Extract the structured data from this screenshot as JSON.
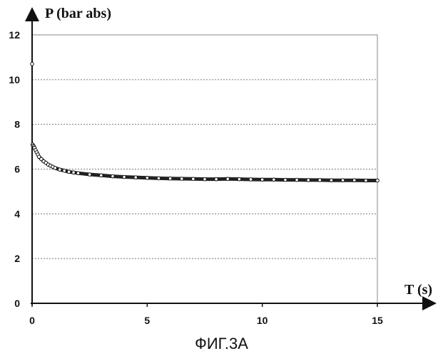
{
  "chart_data": {
    "type": "scatter",
    "xlabel": "T (s)",
    "ylabel": "P (bar abs)",
    "xlim": [
      0,
      15
    ],
    "ylim": [
      0,
      12
    ],
    "x_ticks": [
      "0",
      "5",
      "10",
      "15"
    ],
    "y_ticks": [
      "0",
      "2",
      "4",
      "6",
      "8",
      "10",
      "12"
    ],
    "grid": "horizontal dashed",
    "series": [
      {
        "x": [
          0.0,
          0.02,
          0.05,
          0.08,
          0.1,
          0.15,
          0.2,
          0.25,
          0.3,
          0.4,
          0.5,
          0.6,
          0.7,
          0.8,
          0.9,
          1.0,
          1.2,
          1.4,
          1.6,
          1.8,
          2.0,
          2.5,
          3.0,
          3.5,
          4.0,
          4.5,
          5.0,
          5.5,
          6.0,
          6.5,
          7.0,
          7.5,
          8.0,
          8.5,
          9.0,
          9.5,
          10.0,
          10.5,
          11.0,
          11.5,
          12.0,
          12.5,
          13.0,
          13.5,
          14.0,
          14.5,
          15.0
        ],
        "y": [
          10.7,
          7.1,
          7.05,
          7.0,
          6.95,
          6.85,
          6.75,
          6.65,
          6.55,
          6.45,
          6.35,
          6.28,
          6.2,
          6.15,
          6.1,
          6.05,
          5.98,
          5.93,
          5.88,
          5.85,
          5.82,
          5.76,
          5.72,
          5.68,
          5.65,
          5.63,
          5.61,
          5.59,
          5.58,
          5.57,
          5.56,
          5.55,
          5.55,
          5.56,
          5.55,
          5.54,
          5.53,
          5.53,
          5.52,
          5.52,
          5.51,
          5.51,
          5.5,
          5.5,
          5.5,
          5.49,
          5.49
        ]
      }
    ]
  },
  "caption": "ФИГ.3A"
}
